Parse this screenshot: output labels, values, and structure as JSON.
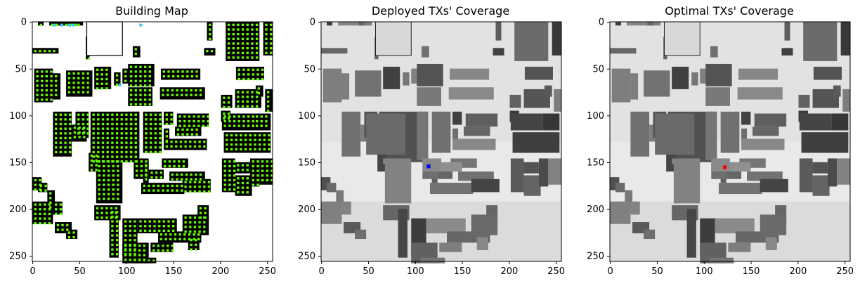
{
  "chart_data": [
    {
      "type": "heatmap",
      "title": "Building Map",
      "xlim": [
        0,
        255
      ],
      "ylim": [
        255,
        0
      ],
      "xticks": [
        0,
        50,
        100,
        150,
        200,
        250
      ],
      "yticks": [
        0,
        50,
        100,
        150,
        200,
        250
      ],
      "background": "white",
      "buildings_color": "#000000",
      "markers": [
        {
          "name": "candidate TX locations",
          "color": "#66ff00"
        },
        {
          "name": "deployed TX locations",
          "color": "#33ccff"
        }
      ]
    },
    {
      "type": "heatmap",
      "title": "Deployed TXs' Coverage",
      "xlim": [
        0,
        255
      ],
      "ylim": [
        255,
        0
      ],
      "xticks": [
        0,
        50,
        100,
        150,
        200,
        250
      ],
      "yticks": [
        0,
        50,
        100,
        150,
        200,
        250
      ],
      "colormap": "gray",
      "tx_marker": {
        "x": 114,
        "y": 154,
        "color": "#0000ff"
      }
    },
    {
      "type": "heatmap",
      "title": "Optimal TXs' Coverage",
      "xlim": [
        0,
        255
      ],
      "ylim": [
        255,
        0
      ],
      "xticks": [
        0,
        50,
        100,
        150,
        200,
        250
      ],
      "yticks": [
        0,
        50,
        100,
        150,
        200,
        250
      ],
      "colormap": "gray",
      "tx_marker": {
        "x": 122,
        "y": 155,
        "color": "#ff0000"
      }
    }
  ]
}
